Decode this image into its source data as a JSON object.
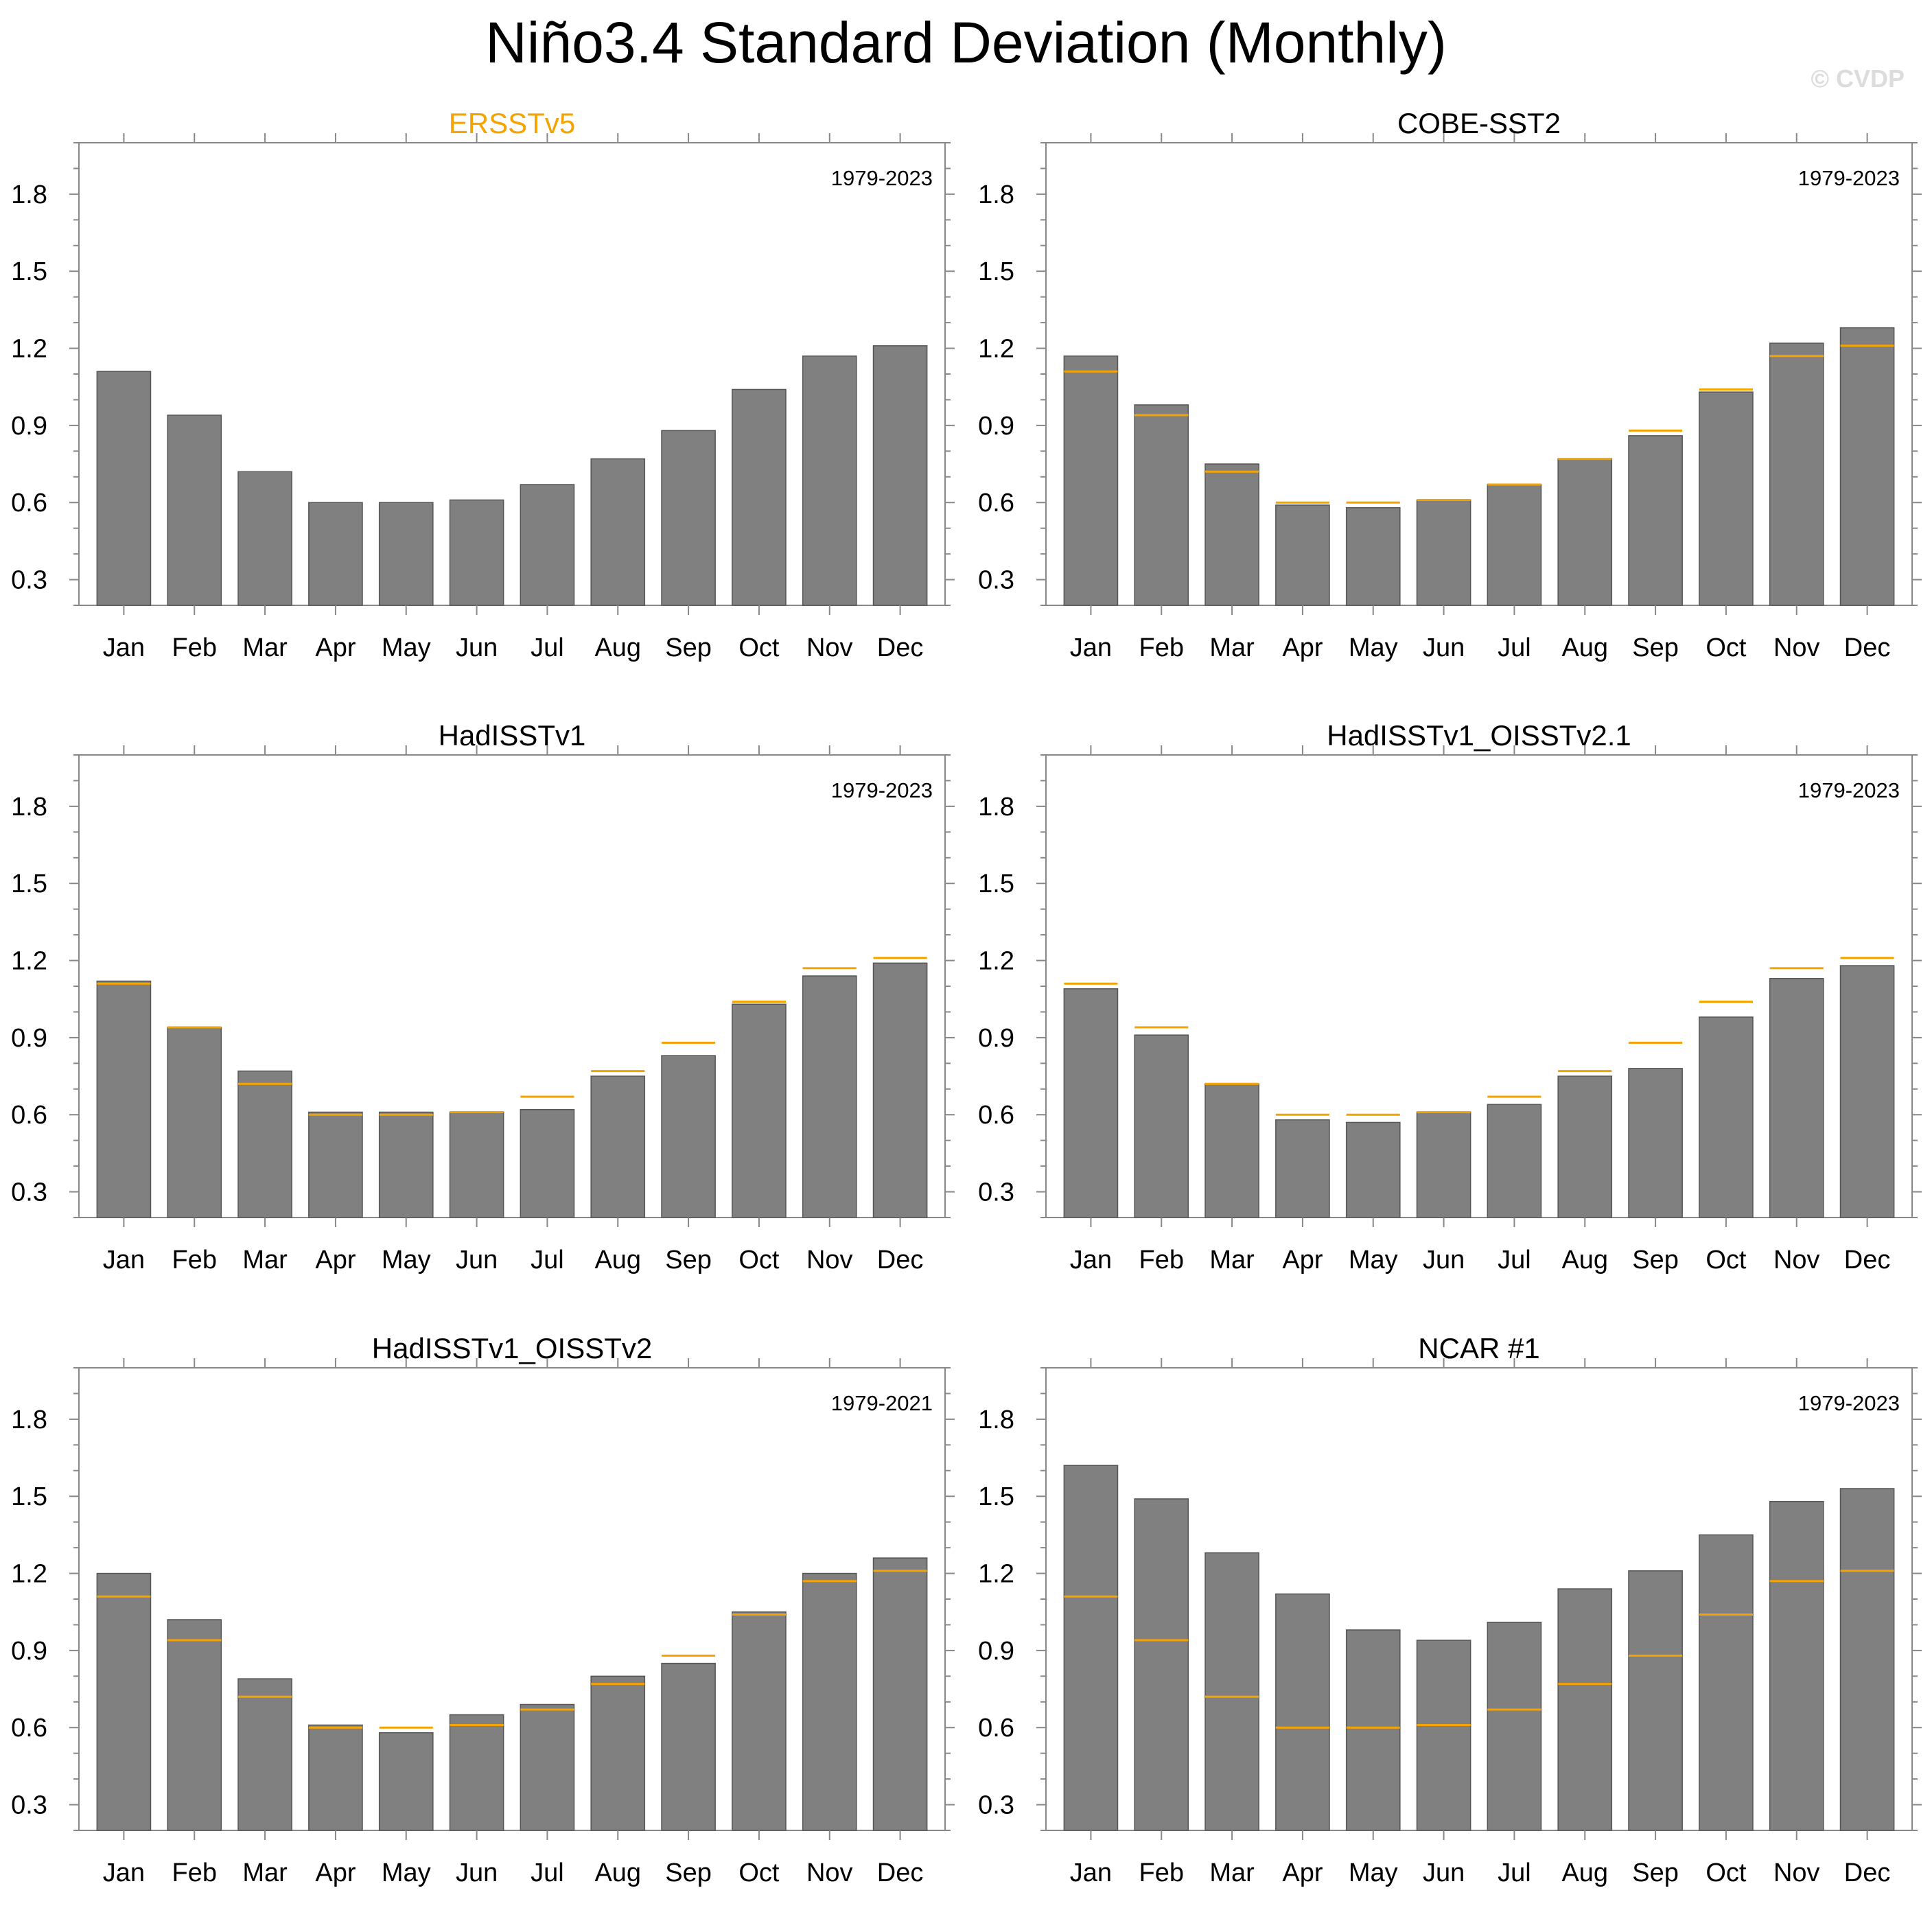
{
  "title": "Niño3.4 Standard Deviation (Monthly)",
  "watermark": "© CVDP",
  "colors": {
    "bar": "#808080",
    "bar_edge": "#555555",
    "reference_line": "#f5a300",
    "highlight_title": "#f5a300",
    "axis": "#888888",
    "text": "#000000"
  },
  "chart_data": [
    {
      "type": "bar",
      "title": "ERSSTv5",
      "title_highlight": true,
      "period": "1979-2023",
      "categories": [
        "Jan",
        "Feb",
        "Mar",
        "Apr",
        "May",
        "Jun",
        "Jul",
        "Aug",
        "Sep",
        "Oct",
        "Nov",
        "Dec"
      ],
      "values": [
        1.11,
        0.94,
        0.72,
        0.6,
        0.6,
        0.61,
        0.67,
        0.77,
        0.88,
        1.04,
        1.17,
        1.21
      ],
      "reference": [],
      "yticks": [
        0.3,
        0.6,
        0.9,
        1.2,
        1.5,
        1.8
      ],
      "ylim": [
        0.2,
        2.0
      ]
    },
    {
      "type": "bar",
      "title": "COBE-SST2",
      "title_highlight": false,
      "period": "1979-2023",
      "categories": [
        "Jan",
        "Feb",
        "Mar",
        "Apr",
        "May",
        "Jun",
        "Jul",
        "Aug",
        "Sep",
        "Oct",
        "Nov",
        "Dec"
      ],
      "values": [
        1.17,
        0.98,
        0.75,
        0.59,
        0.58,
        0.61,
        0.67,
        0.77,
        0.86,
        1.03,
        1.22,
        1.28
      ],
      "reference": [
        1.11,
        0.94,
        0.72,
        0.6,
        0.6,
        0.61,
        0.67,
        0.77,
        0.88,
        1.04,
        1.17,
        1.21
      ],
      "yticks": [
        0.3,
        0.6,
        0.9,
        1.2,
        1.5,
        1.8
      ],
      "ylim": [
        0.2,
        2.0
      ]
    },
    {
      "type": "bar",
      "title": "HadISSTv1",
      "title_highlight": false,
      "period": "1979-2023",
      "categories": [
        "Jan",
        "Feb",
        "Mar",
        "Apr",
        "May",
        "Jun",
        "Jul",
        "Aug",
        "Sep",
        "Oct",
        "Nov",
        "Dec"
      ],
      "values": [
        1.12,
        0.94,
        0.77,
        0.61,
        0.61,
        0.61,
        0.62,
        0.75,
        0.83,
        1.03,
        1.14,
        1.19
      ],
      "reference": [
        1.11,
        0.94,
        0.72,
        0.6,
        0.6,
        0.61,
        0.67,
        0.77,
        0.88,
        1.04,
        1.17,
        1.21
      ],
      "yticks": [
        0.3,
        0.6,
        0.9,
        1.2,
        1.5,
        1.8
      ],
      "ylim": [
        0.2,
        2.0
      ]
    },
    {
      "type": "bar",
      "title": "HadISSTv1_OISSTv2.1",
      "title_highlight": false,
      "period": "1979-2023",
      "categories": [
        "Jan",
        "Feb",
        "Mar",
        "Apr",
        "May",
        "Jun",
        "Jul",
        "Aug",
        "Sep",
        "Oct",
        "Nov",
        "Dec"
      ],
      "values": [
        1.09,
        0.91,
        0.72,
        0.58,
        0.57,
        0.61,
        0.64,
        0.75,
        0.78,
        0.98,
        1.13,
        1.18
      ],
      "reference": [
        1.11,
        0.94,
        0.72,
        0.6,
        0.6,
        0.61,
        0.67,
        0.77,
        0.88,
        1.04,
        1.17,
        1.21
      ],
      "yticks": [
        0.3,
        0.6,
        0.9,
        1.2,
        1.5,
        1.8
      ],
      "ylim": [
        0.2,
        2.0
      ]
    },
    {
      "type": "bar",
      "title": "HadISSTv1_OISSTv2",
      "title_highlight": false,
      "period": "1979-2021",
      "categories": [
        "Jan",
        "Feb",
        "Mar",
        "Apr",
        "May",
        "Jun",
        "Jul",
        "Aug",
        "Sep",
        "Oct",
        "Nov",
        "Dec"
      ],
      "values": [
        1.2,
        1.02,
        0.79,
        0.61,
        0.58,
        0.65,
        0.69,
        0.8,
        0.85,
        1.05,
        1.2,
        1.26
      ],
      "reference": [
        1.11,
        0.94,
        0.72,
        0.6,
        0.6,
        0.61,
        0.67,
        0.77,
        0.88,
        1.04,
        1.17,
        1.21
      ],
      "yticks": [
        0.3,
        0.6,
        0.9,
        1.2,
        1.5,
        1.8
      ],
      "ylim": [
        0.2,
        2.0
      ]
    },
    {
      "type": "bar",
      "title": "NCAR #1",
      "title_highlight": false,
      "period": "1979-2023",
      "categories": [
        "Jan",
        "Feb",
        "Mar",
        "Apr",
        "May",
        "Jun",
        "Jul",
        "Aug",
        "Sep",
        "Oct",
        "Nov",
        "Dec"
      ],
      "values": [
        1.62,
        1.49,
        1.28,
        1.12,
        0.98,
        0.94,
        1.01,
        1.14,
        1.21,
        1.35,
        1.48,
        1.53
      ],
      "reference": [
        1.11,
        0.94,
        0.72,
        0.6,
        0.6,
        0.61,
        0.67,
        0.77,
        0.88,
        1.04,
        1.17,
        1.21
      ],
      "yticks": [
        0.3,
        0.6,
        0.9,
        1.2,
        1.5,
        1.8
      ],
      "ylim": [
        0.2,
        2.0
      ]
    }
  ]
}
